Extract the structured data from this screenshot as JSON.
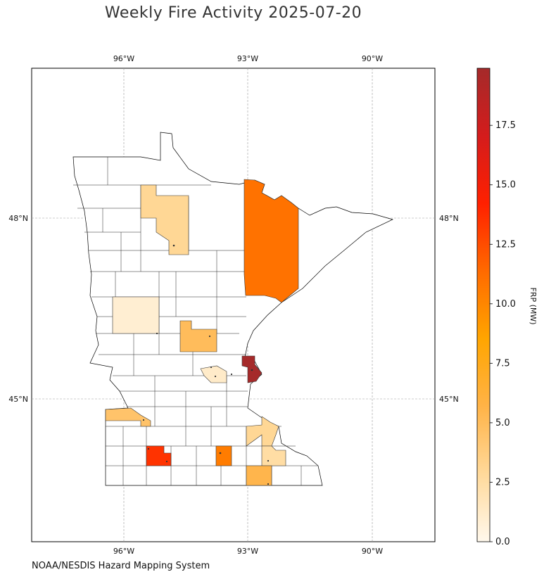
{
  "title": "Weekly Fire Activity 2025-07-20",
  "source": "NOAA/NESDIS Hazard Mapping System",
  "map": {
    "lon_ticks_top": [
      "96°W",
      "93°W",
      "90°W"
    ],
    "lon_ticks_bottom": [
      "96°W",
      "93°W",
      "90°W"
    ],
    "lat_ticks_left": [
      "48°N",
      "45°N"
    ],
    "lat_ticks_right": [
      "48°N",
      "45°N"
    ]
  },
  "colorbar": {
    "label": "FRP (MW)",
    "ticks": [
      "0.0",
      "2.5",
      "5.0",
      "7.5",
      "10.0",
      "12.5",
      "15.0",
      "17.5"
    ],
    "tick_values": [
      0,
      2.5,
      5,
      7.5,
      10,
      12.5,
      15,
      17.5
    ],
    "min": 0,
    "max": 19.9,
    "colors": [
      "#fff8ec",
      "#ffd99a",
      "#ffb347",
      "#ffa500",
      "#ff6a00",
      "#ff2000",
      "#d41c1c",
      "#a52a2a"
    ]
  },
  "counties": [
    {
      "name": "county-northwest-frp",
      "frp": 3.0
    },
    {
      "name": "county-st-louis-frp",
      "frp": 11.0
    },
    {
      "name": "county-otter-tail-frp",
      "frp": 0.9
    },
    {
      "name": "county-crow-wing-frp",
      "frp": 5.0
    },
    {
      "name": "county-washington-frp",
      "frp": 19.9
    },
    {
      "name": "county-lac-qui-parle-frp",
      "frp": 4.5
    },
    {
      "name": "county-watonwan-frp",
      "frp": 13.5
    },
    {
      "name": "county-steele-frp",
      "frp": 10.5
    },
    {
      "name": "county-goodhue-frp",
      "frp": 3.0
    },
    {
      "name": "county-olmsted-frp",
      "frp": 2.5
    },
    {
      "name": "county-freeborn-frp",
      "frp": 5.5
    },
    {
      "name": "county-mcleod-frp",
      "frp": 1.2
    }
  ]
}
